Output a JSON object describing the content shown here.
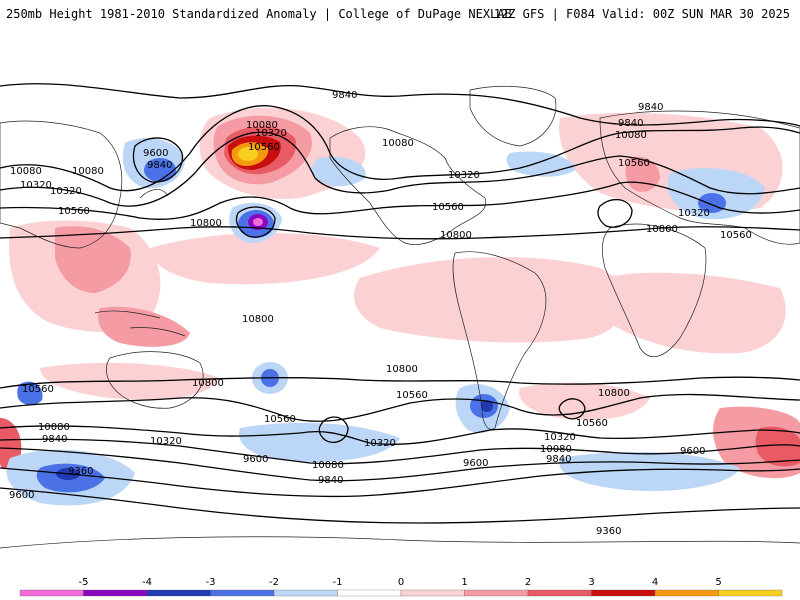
{
  "header": {
    "left_text": "250mb Height 1981-2010 Standardized Anomaly | College of DuPage NEXLAB",
    "right_text": "12Z GFS | F084 Valid: 00Z SUN MAR 30 2025"
  },
  "contour_labels": [
    {
      "id": "c1",
      "text": "9840"
    },
    {
      "id": "c2",
      "text": "9840"
    },
    {
      "id": "c3",
      "text": "10080"
    },
    {
      "id": "c4",
      "text": "10080"
    },
    {
      "id": "c5",
      "text": "10320"
    },
    {
      "id": "c6",
      "text": "10320"
    },
    {
      "id": "c7",
      "text": "10560"
    },
    {
      "id": "c8",
      "text": "10560"
    },
    {
      "id": "c9",
      "text": "10800"
    },
    {
      "id": "c10",
      "text": "10800"
    },
    {
      "id": "c11",
      "text": "10080"
    },
    {
      "id": "c12",
      "text": "10320"
    },
    {
      "id": "c13",
      "text": "9600"
    },
    {
      "id": "c14",
      "text": "9840"
    },
    {
      "id": "c15",
      "text": "10560"
    },
    {
      "id": "c16",
      "text": "10080"
    },
    {
      "id": "c17",
      "text": "10320"
    },
    {
      "id": "c18",
      "text": "9840"
    },
    {
      "id": "c19",
      "text": "10080"
    },
    {
      "id": "c20",
      "text": "10560"
    },
    {
      "id": "c21",
      "text": "10320"
    },
    {
      "id": "c22",
      "text": "10800"
    },
    {
      "id": "c23",
      "text": "10800"
    },
    {
      "id": "c24",
      "text": "10560"
    },
    {
      "id": "c25",
      "text": "10560"
    },
    {
      "id": "c26",
      "text": "10320"
    },
    {
      "id": "c27",
      "text": "10080"
    },
    {
      "id": "c28",
      "text": "9840"
    },
    {
      "id": "c29",
      "text": "9600"
    },
    {
      "id": "c30",
      "text": "9360"
    },
    {
      "id": "c31",
      "text": "10800"
    },
    {
      "id": "c32",
      "text": "10560"
    },
    {
      "id": "c33",
      "text": "10320"
    },
    {
      "id": "c34",
      "text": "10080"
    },
    {
      "id": "c35",
      "text": "9840"
    },
    {
      "id": "c36",
      "text": "9600"
    },
    {
      "id": "c37",
      "text": "10320"
    },
    {
      "id": "c38",
      "text": "10080"
    },
    {
      "id": "c39",
      "text": "9840"
    },
    {
      "id": "c40",
      "text": "9600"
    },
    {
      "id": "c41",
      "text": "9600"
    },
    {
      "id": "c42",
      "text": "9360"
    },
    {
      "id": "c43",
      "text": "10800"
    },
    {
      "id": "c44",
      "text": "10560"
    },
    {
      "id": "c45",
      "text": "10560"
    },
    {
      "id": "c46",
      "text": "10800"
    }
  ],
  "colorbar": {
    "ticks": [
      "-5",
      "-4",
      "-3",
      "-2",
      "-1",
      "0",
      "1",
      "2",
      "3",
      "4",
      "5"
    ],
    "colors": [
      "#f26ad8",
      "#8b08c2",
      "#2139b5",
      "#4a72e6",
      "#bcd6f7",
      "#ffffff",
      "#fbd1d4",
      "#f59ba3",
      "#e85a64",
      "#c80e0e",
      "#f59a10",
      "#f7d020"
    ]
  },
  "colors": {
    "contour": "#000000",
    "coast": "#222222"
  }
}
